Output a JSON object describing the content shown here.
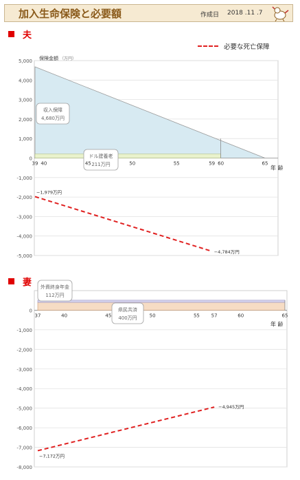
{
  "header": {
    "title": "加入生命保険と必要額",
    "date_label": "作成日",
    "date_value": "2018 .11 .7"
  },
  "legend": {
    "label": "必要な死亡保障"
  },
  "colors": {
    "need_line": "#e02020",
    "income_area": "#d7eaf2",
    "pension_band": "#e9f2cc"
  },
  "chart_data": [
    {
      "type": "area",
      "section_label": "夫",
      "ylabel": "保険金額",
      "yunit": "（万円）",
      "xlabel": "年 齢",
      "ylim": [
        -5000,
        5000
      ],
      "yticks": [
        5000,
        4000,
        3000,
        2000,
        1000,
        0,
        -1000,
        -2000,
        -3000,
        -4000,
        -5000
      ],
      "ytick_labels": [
        "5,000",
        "4,000",
        "3,000",
        "2,000",
        "1,000",
        "0",
        "-1,000",
        "-2,000",
        "-3,000",
        "-4,000",
        "-5,000"
      ],
      "xticks": [
        39,
        40,
        45,
        50,
        55,
        59,
        60,
        65
      ],
      "xtick_labels": [
        "39",
        "40",
        "45",
        "50",
        "55",
        "59",
        "60",
        "65"
      ],
      "coverage": [
        {
          "label": "収入保障",
          "value_label": "4,680万円",
          "start": 39,
          "end": 65,
          "value_start": 4680,
          "value_end": 0
        },
        {
          "label": "ドル建養老",
          "value_label": "211万円",
          "start": 39,
          "end": 60,
          "value": 211
        }
      ],
      "need_series": {
        "name": "必要な死亡保障",
        "x": [
          39,
          59
        ],
        "y": [
          -1979,
          -4784
        ],
        "labels": [
          "−1,979万円",
          "−4,784万円"
        ]
      }
    },
    {
      "type": "area",
      "section_label": "妻",
      "xlabel": "年 齢",
      "ylim": [
        -8000,
        1000
      ],
      "yticks": [
        0,
        -1000,
        -2000,
        -3000,
        -4000,
        -5000,
        -6000,
        -7000,
        -8000
      ],
      "ytick_labels": [
        "0",
        "-1,000",
        "-2,000",
        "-3,000",
        "-4,000",
        "-5,000",
        "-6,000",
        "-7,000",
        "-8,000"
      ],
      "xticks": [
        37,
        40,
        45,
        50,
        55,
        57,
        60,
        65
      ],
      "xtick_labels": [
        "37",
        "40",
        "45",
        "50",
        "55",
        "57",
        "60",
        "65"
      ],
      "coverage": [
        {
          "label": "外資終身年金",
          "value_label": "112万円",
          "start": 37,
          "end": 65,
          "value": 112
        },
        {
          "label": "県民共済",
          "value_label": "400万円",
          "start": 37,
          "end": 65,
          "value": 400
        }
      ],
      "need_series": {
        "name": "必要な死亡保障",
        "x": [
          37,
          57
        ],
        "y": [
          -7172,
          -4945
        ],
        "labels": [
          "−7,172万円",
          "−4,945万円"
        ]
      }
    }
  ]
}
